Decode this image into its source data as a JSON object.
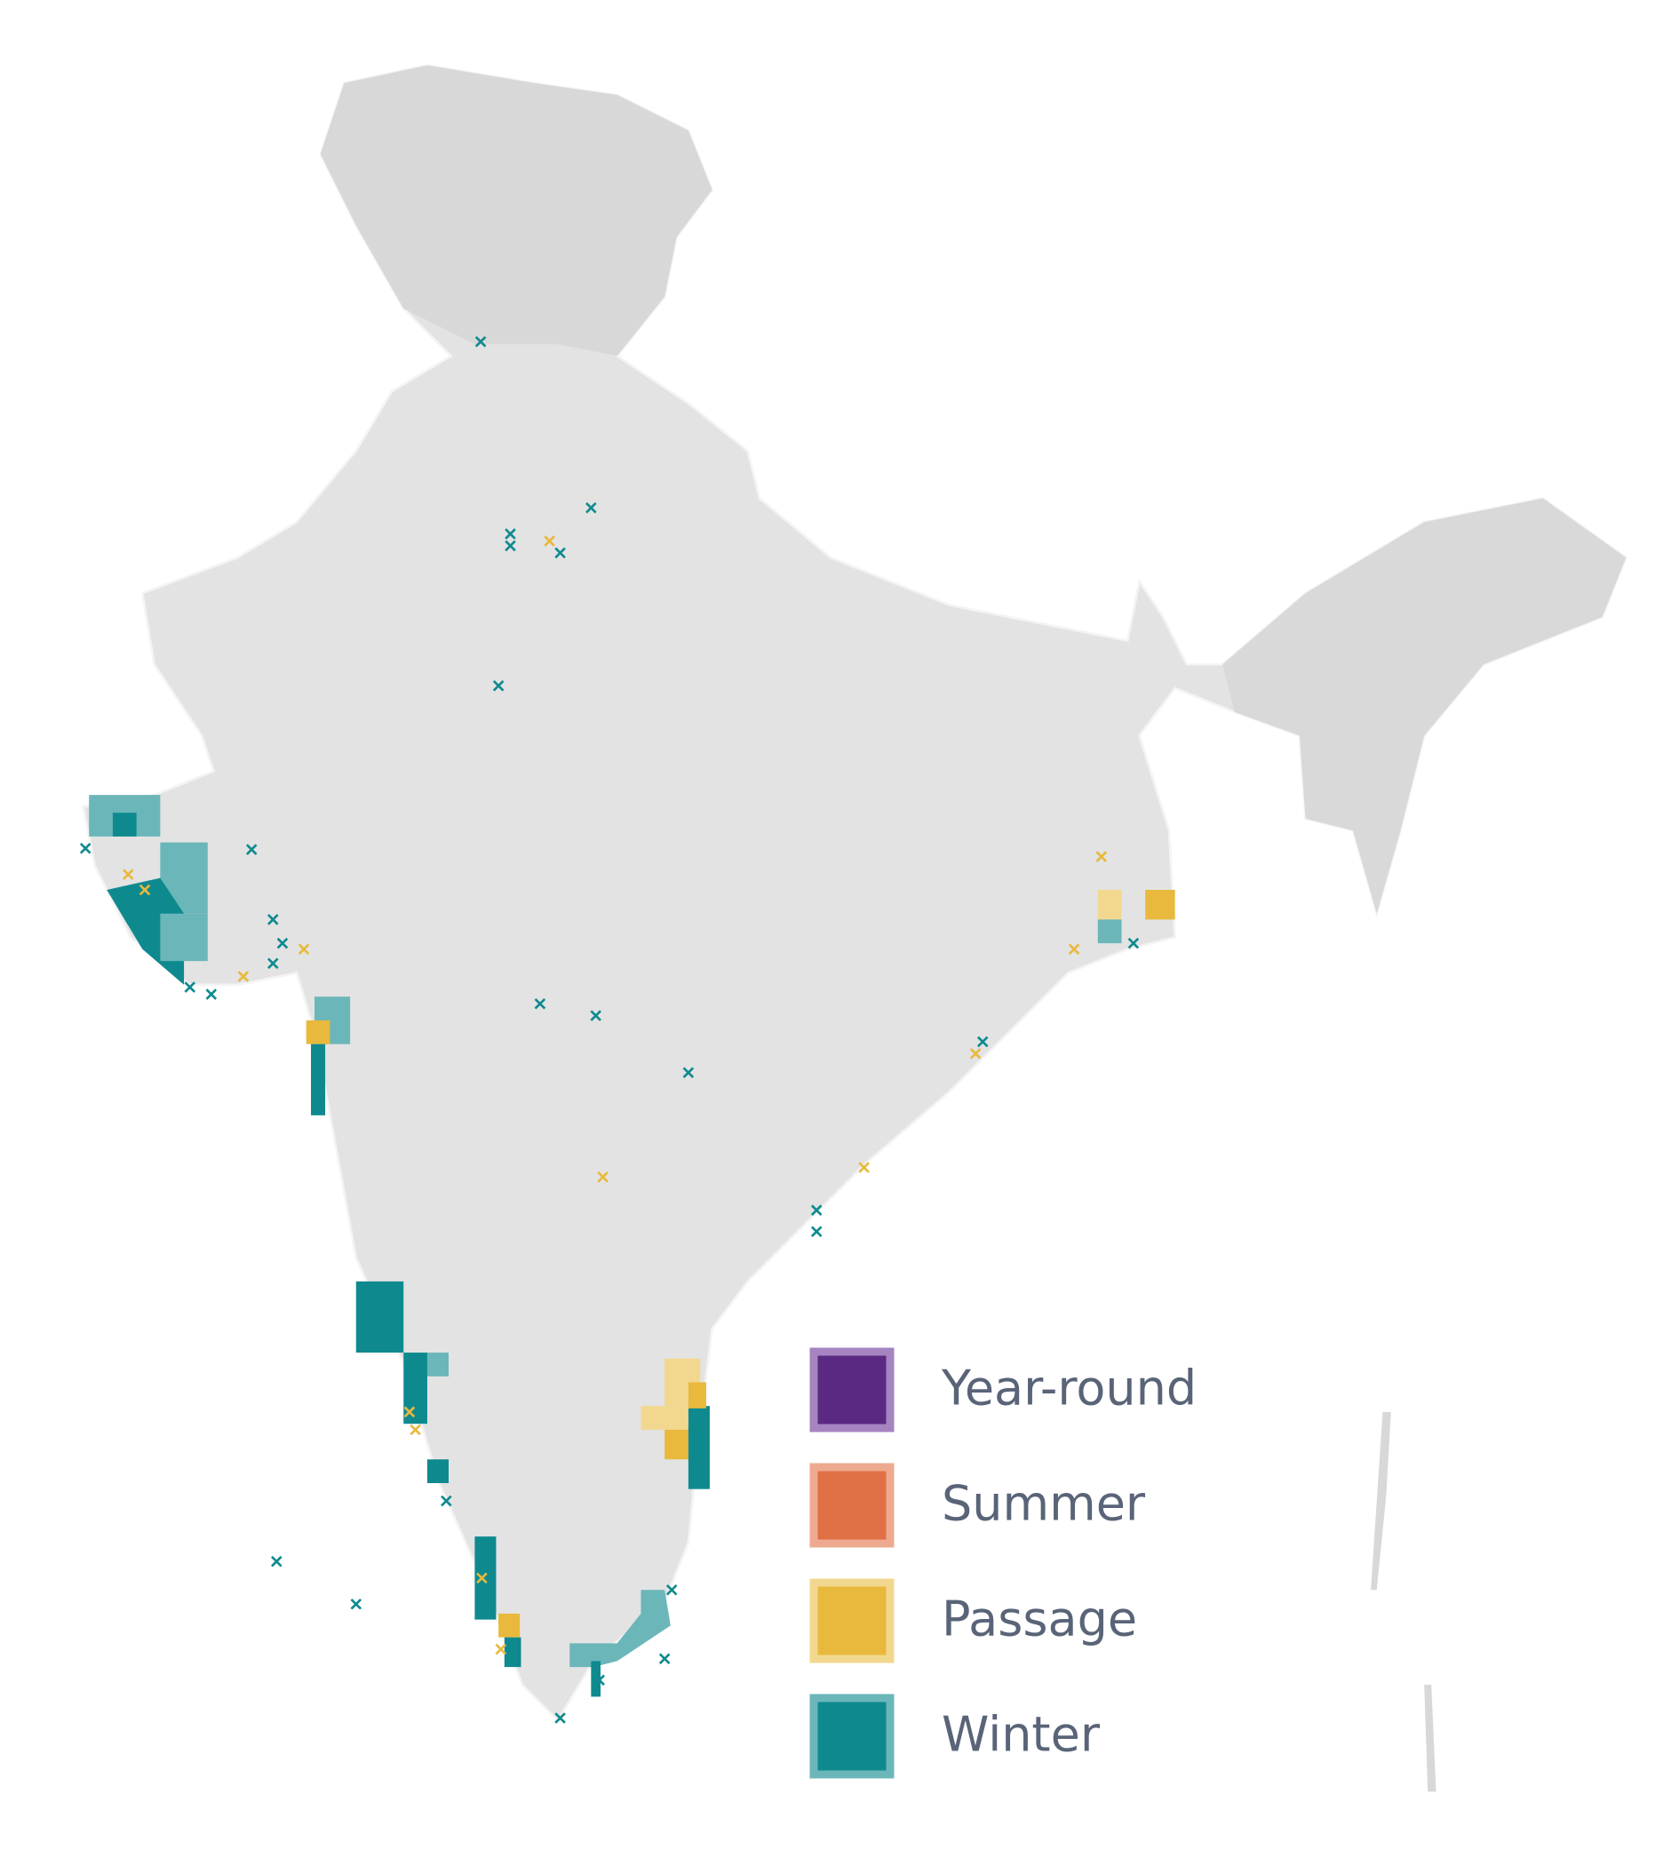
{
  "legend": {
    "items": [
      {
        "label": "Year-round",
        "color": "#5a2a82",
        "border": "#a584c0"
      },
      {
        "label": "Summer",
        "color": "#e07045",
        "border": "#eeaa90"
      },
      {
        "label": "Passage",
        "color": "#e8b93d",
        "border": "#f2d88e"
      },
      {
        "label": "Winter",
        "color": "#0e8a8f",
        "border": "#6bb6b9"
      }
    ]
  }
}
